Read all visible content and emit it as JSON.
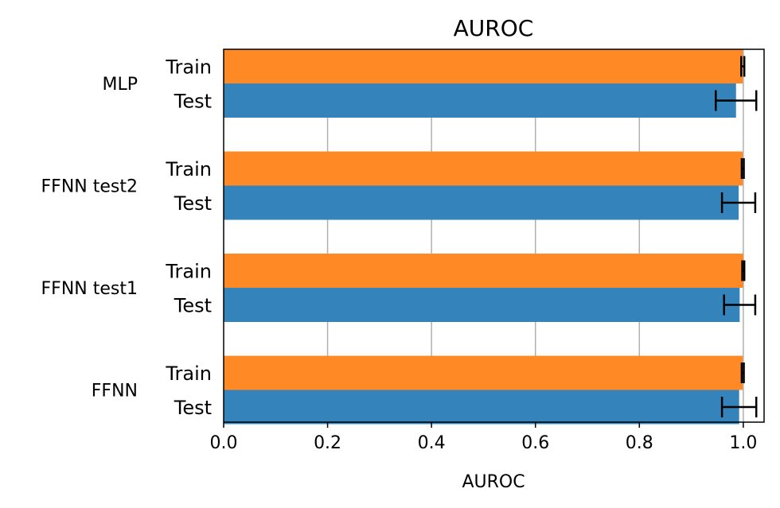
{
  "chart_data": {
    "type": "bar",
    "orientation": "horizontal",
    "title": "AUROC",
    "xlabel": "AUROC",
    "ylabel": "",
    "xlim": [
      0.0,
      1.04
    ],
    "xticks": [
      "0.0",
      "0.2",
      "0.4",
      "0.6",
      "0.8",
      "1.0"
    ],
    "grid": "vertical",
    "categories": [
      "MLP",
      "FFNN test2",
      "FFNN test1",
      "FFNN"
    ],
    "bar_labels": [
      "Train",
      "Test"
    ],
    "series": [
      {
        "name": "Train",
        "color": "#ff8a25",
        "values": [
          0.999,
          0.999,
          1.0,
          0.999
        ],
        "errors": [
          0.003,
          0.002,
          0.002,
          0.002
        ]
      },
      {
        "name": "Test",
        "color": "#3583bb",
        "values": [
          0.986,
          0.991,
          0.993,
          0.992
        ],
        "errors": [
          0.039,
          0.032,
          0.03,
          0.033
        ]
      }
    ]
  }
}
